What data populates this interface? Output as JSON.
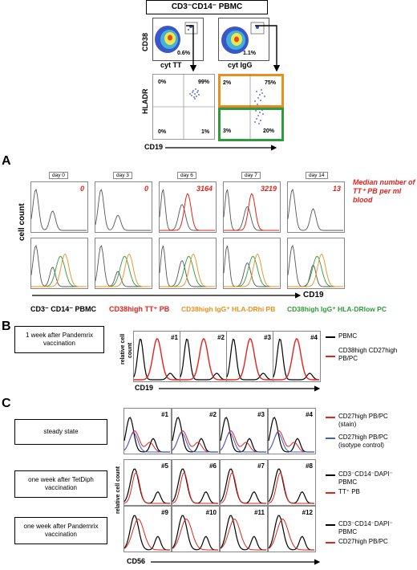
{
  "header": {
    "title": "CD3⁻CD14⁻ PBMC"
  },
  "dot_plots": {
    "cd38_label": "CD38",
    "tt": {
      "xlabel": "cyt TT",
      "pct": "0.6%"
    },
    "igg": {
      "xlabel": "cyt IgG",
      "pct": "1.1%"
    }
  },
  "quad_plots": {
    "ylabel": "HLADR",
    "xlabel": "CD19",
    "left": {
      "q1": "0%",
      "q2": "99%",
      "q3": "0%",
      "q4": "1%"
    },
    "right": {
      "q1": "2%",
      "q2": "75%",
      "q3": "3%",
      "q4": "20%"
    }
  },
  "panel_a": {
    "letter": "A",
    "days": [
      "day 0",
      "day 3",
      "day 6",
      "day 7",
      "day 14"
    ],
    "counts": [
      "0",
      "0",
      "3164",
      "3219",
      "13"
    ],
    "median_note_1": "Median number of",
    "median_note_2": "TT⁺ PB per ml blood",
    "ylabel": "cell count",
    "xlabel": "CD19",
    "legend": {
      "black": "CD3⁻ CD14⁻ PBMC",
      "red": "CD38high TT⁺ PB",
      "orange": "CD38high IgG⁺ HLA-DRhi PB",
      "green": "CD38high IgG⁺ HLA-DRlow PC"
    }
  },
  "panel_b": {
    "letter": "B",
    "condition": "1 week after Pandemrix vaccination",
    "ylabel_1": "relative cell",
    "ylabel_2": "count",
    "xlabel": "CD19",
    "ids": [
      "#1",
      "#2",
      "#3",
      "#4"
    ],
    "legend": {
      "black": "PBMC",
      "red_1": "CD38high CD27high",
      "red_2": "PB/PC"
    }
  },
  "panel_c": {
    "letter": "C",
    "ylabel": "relative cell count",
    "xlabel": "CD56",
    "rows": [
      {
        "condition": "steady state",
        "ids": [
          "#1",
          "#2",
          "#3",
          "#4"
        ],
        "legend": [
          "CD27high PB/PC",
          "(stain)",
          "CD27high PB/PC",
          "(isotype control)"
        ]
      },
      {
        "condition": "one week after TetDiph vaccination",
        "ids": [
          "#5",
          "#6",
          "#7",
          "#8"
        ],
        "legend": [
          "CD3⁻CD14⁻DAPI⁻",
          "PBMC",
          "TT⁺ PB"
        ]
      },
      {
        "condition": "one week after Pandemrix vaccination",
        "ids": [
          "#9",
          "#10",
          "#11",
          "#12"
        ],
        "legend": [
          "CD3⁻CD14⁻DAPI⁻",
          "PBMC",
          "CD27high PB/PC"
        ]
      }
    ]
  },
  "colors": {
    "red": "#e2231a",
    "orange": "#e8901e",
    "green": "#2f9a3a",
    "blue": "#3a5fcd"
  }
}
